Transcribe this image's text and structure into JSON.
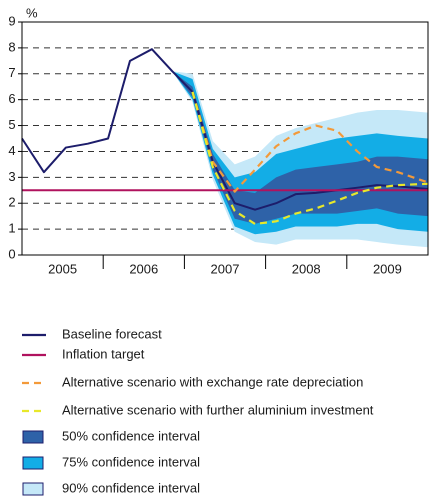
{
  "chart_data": {
    "type": "fan",
    "ylabel": "%",
    "ylim": [
      0,
      9
    ],
    "yticks": [
      0,
      1,
      2,
      3,
      4,
      5,
      6,
      7,
      8,
      9
    ],
    "xlim": [
      2005,
      2010
    ],
    "xticks": [
      {
        "value": 2005.5,
        "label": "2005"
      },
      {
        "value": 2006.5,
        "label": "2006"
      },
      {
        "value": 2007.5,
        "label": "2007"
      },
      {
        "value": 2008.5,
        "label": "2008"
      },
      {
        "value": 2009.5,
        "label": "2009"
      }
    ],
    "grid": true,
    "series": [
      {
        "name": "Baseline forecast",
        "color": "#1d1d6b",
        "dashed": false,
        "x": [
          2005.0,
          2005.27,
          2005.54,
          2005.81,
          2006.06,
          2006.33,
          2006.6,
          2006.85,
          2007.1,
          2007.35,
          2007.62,
          2007.87,
          2008.13,
          2008.37,
          2008.62,
          2008.88,
          2009.13,
          2009.37,
          2009.63,
          2010.0
        ],
        "values": [
          4.5,
          3.2,
          4.15,
          4.3,
          4.5,
          7.5,
          7.95,
          7.1,
          6.3,
          3.6,
          2.0,
          1.75,
          2.0,
          2.35,
          2.4,
          2.5,
          2.6,
          2.7,
          2.65,
          2.55
        ]
      },
      {
        "name": "Inflation target",
        "color": "#b0125e",
        "dashed": false,
        "x": [
          2005.0,
          2010.0
        ],
        "values": [
          2.5,
          2.5
        ]
      },
      {
        "name": "Alternative scenario with exchange rate depreciation",
        "color": "#f39a3a",
        "dashed": true,
        "x": [
          2007.1,
          2007.35,
          2007.62,
          2007.87,
          2008.13,
          2008.37,
          2008.62,
          2008.88,
          2009.13,
          2009.37,
          2009.63,
          2010.0
        ],
        "values": [
          6.3,
          3.6,
          2.45,
          3.3,
          4.2,
          4.7,
          5.0,
          4.8,
          4.0,
          3.4,
          3.2,
          2.8
        ]
      },
      {
        "name": "Alternative scenario with further aluminium investment",
        "color": "#e8e82a",
        "dashed": true,
        "x": [
          2007.1,
          2007.35,
          2007.62,
          2007.87,
          2008.13,
          2008.37,
          2008.62,
          2008.88,
          2009.13,
          2009.37,
          2009.63,
          2010.0
        ],
        "values": [
          6.3,
          3.4,
          1.7,
          1.2,
          1.3,
          1.6,
          1.8,
          2.1,
          2.4,
          2.6,
          2.7,
          2.75
        ]
      }
    ],
    "bands_x": [
      2006.85,
      2007.1,
      2007.35,
      2007.62,
      2007.87,
      2008.13,
      2008.37,
      2008.62,
      2008.88,
      2009.13,
      2009.37,
      2009.63,
      2010.0
    ],
    "bands": [
      {
        "name": "50% confidence interval",
        "color": "#2e62a8",
        "low": [
          7.1,
          6.1,
          3.3,
          1.4,
          1.2,
          1.4,
          1.6,
          1.6,
          1.6,
          1.7,
          1.8,
          1.6,
          1.5
        ],
        "high": [
          7.1,
          6.5,
          3.9,
          2.5,
          2.4,
          3.0,
          3.3,
          3.4,
          3.5,
          3.6,
          3.8,
          3.8,
          3.7
        ]
      },
      {
        "name": "75% confidence interval",
        "color": "#13ade6",
        "low": [
          7.1,
          6.0,
          3.1,
          1.1,
          0.8,
          0.9,
          1.1,
          1.1,
          1.1,
          1.2,
          1.2,
          1.0,
          0.9
        ],
        "high": [
          7.1,
          6.8,
          4.1,
          3.0,
          3.2,
          3.9,
          4.1,
          4.3,
          4.5,
          4.6,
          4.7,
          4.6,
          4.5
        ]
      },
      {
        "name": "90% confidence interval",
        "color": "#c5e8f8",
        "low": [
          7.1,
          5.9,
          2.9,
          0.9,
          0.5,
          0.4,
          0.6,
          0.6,
          0.6,
          0.6,
          0.5,
          0.4,
          0.3
        ],
        "high": [
          7.1,
          7.0,
          4.4,
          3.5,
          3.8,
          4.6,
          4.9,
          5.1,
          5.3,
          5.5,
          5.6,
          5.6,
          5.5
        ]
      }
    ]
  }
}
